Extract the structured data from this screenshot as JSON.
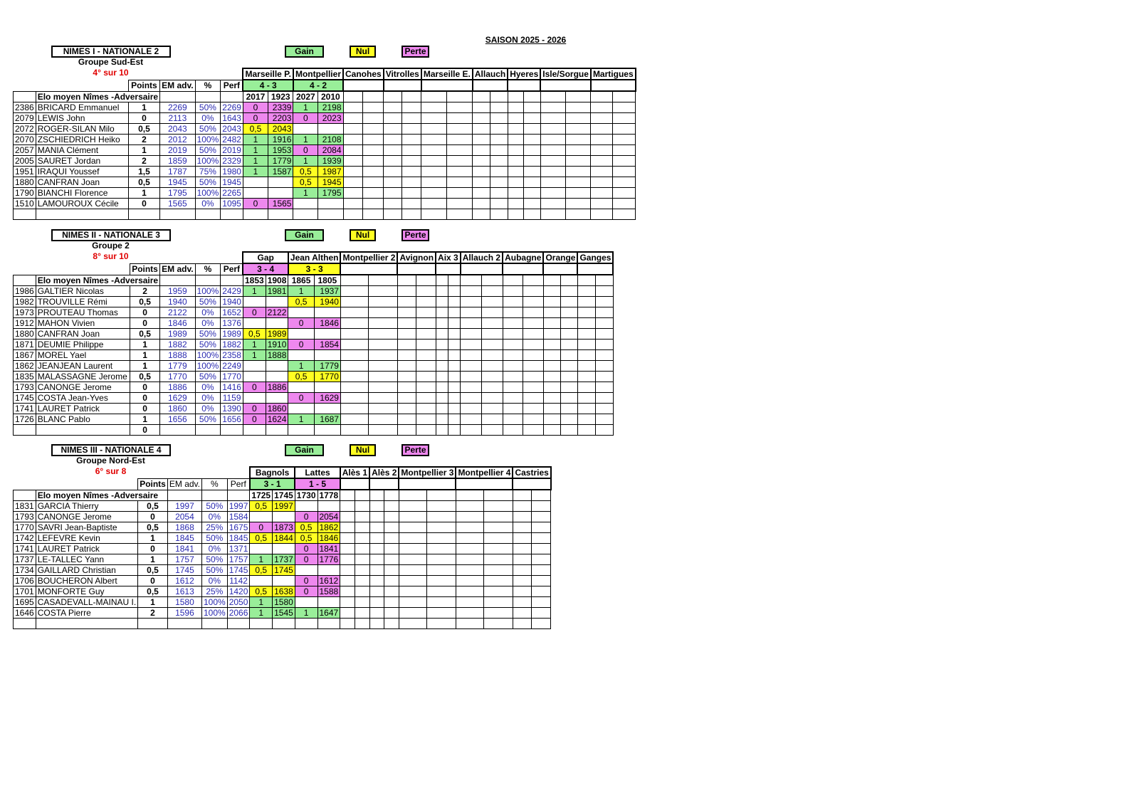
{
  "season": "SAISON 2025 - 2026",
  "legend": {
    "gain": "Gain",
    "nul": "Nul",
    "perte": "Perte"
  },
  "colors": {
    "gain": "#99ee99",
    "nul": "#ffff22",
    "perte": "#ee88ee",
    "rank": "#e00000",
    "values": "#2a2ab0"
  },
  "teams": [
    {
      "title": "NIMES I  -  NATIONALE  2",
      "group": "Groupe Sud-Est",
      "rank": "4° sur 10",
      "headers": {
        "points": "Points",
        "em": "EM adv.",
        "pct": "%",
        "perf": "Perf",
        "elo_label": "Elo moyen Nîmes -Adversaire"
      },
      "matches": [
        {
          "name": "Marseille P.",
          "score": "4 - 3",
          "result": "gain",
          "elos": [
            "2017",
            "1923"
          ]
        },
        {
          "name": "Montpellier",
          "score": "4 - 2",
          "result": "gain",
          "elos": [
            "2027",
            "2010"
          ]
        },
        {
          "name": "Canohes"
        },
        {
          "name": "Vitrolles"
        },
        {
          "name": "Marseille E."
        },
        {
          "name": "Allauch"
        },
        {
          "name": "Hyeres"
        },
        {
          "name": "Isle/Sorgue"
        },
        {
          "name": "Martigues"
        }
      ],
      "players": [
        {
          "elo": "2386",
          "name": "BRICARD Emmanuel",
          "points": "1",
          "em": "2269",
          "pct": "50%",
          "perf": "2269",
          "games": [
            [
              "0",
              "2339"
            ],
            [
              "1",
              "2198"
            ]
          ]
        },
        {
          "elo": "2079",
          "name": "LEWIS John",
          "points": "0",
          "em": "2113",
          "pct": "0%",
          "perf": "1643",
          "games": [
            [
              "0",
              "2203"
            ],
            [
              "0",
              "2023"
            ]
          ]
        },
        {
          "elo": "2072",
          "name": "ROGER-SILAN Milo",
          "points": "0,5",
          "em": "2043",
          "pct": "50%",
          "perf": "2043",
          "games": [
            [
              "0,5",
              "2043"
            ],
            null
          ]
        },
        {
          "elo": "2070",
          "name": "ZSCHIEDRICH Heiko",
          "points": "2",
          "em": "2012",
          "pct": "100%",
          "perf": "2482",
          "games": [
            [
              "1",
              "1916"
            ],
            [
              "1",
              "2108"
            ]
          ]
        },
        {
          "elo": "2057",
          "name": "MANIA Clément",
          "points": "1",
          "em": "2019",
          "pct": "50%",
          "perf": "2019",
          "games": [
            [
              "1",
              "1953"
            ],
            [
              "0",
              "2084"
            ]
          ]
        },
        {
          "elo": "2005",
          "name": "SAURET Jordan",
          "points": "2",
          "em": "1859",
          "pct": "100%",
          "perf": "2329",
          "games": [
            [
              "1",
              "1779"
            ],
            [
              "1",
              "1939"
            ]
          ]
        },
        {
          "elo": "1951",
          "name": "IRAQUI Youssef",
          "points": "1,5",
          "em": "1787",
          "pct": "75%",
          "perf": "1980",
          "games": [
            [
              "1",
              "1587"
            ],
            [
              "0,5",
              "1987"
            ]
          ]
        },
        {
          "elo": "1880",
          "name": "CANFRAN Joan",
          "points": "0,5",
          "em": "1945",
          "pct": "50%",
          "perf": "1945",
          "games": [
            null,
            [
              "0,5",
              "1945"
            ]
          ]
        },
        {
          "elo": "1790",
          "name": "BIANCHI Florence",
          "points": "1",
          "em": "1795",
          "pct": "100%",
          "perf": "2265",
          "games": [
            null,
            [
              "1",
              "1795"
            ]
          ]
        },
        {
          "elo": "1510",
          "name": "LAMOUROUX Cécile",
          "points": "0",
          "em": "1565",
          "pct": "0%",
          "perf": "1095",
          "games": [
            [
              "0",
              "1565"
            ],
            null
          ]
        },
        {
          "elo": "",
          "name": "",
          "points": "",
          "em": "",
          "pct": "",
          "perf": "",
          "games": []
        }
      ]
    },
    {
      "title": "NIMES II  -  NATIONALE  3",
      "group": "Groupe 2",
      "rank": "8°  sur 10",
      "headers": {
        "points": "Points",
        "em": "EM adv.",
        "pct": "%",
        "perf": "Perf",
        "elo_label": "Elo moyen Nîmes -Adversaire"
      },
      "matches": [
        {
          "name": "Gap",
          "score": "3 - 4",
          "result": "perte",
          "elos": [
            "1853",
            "1908"
          ]
        },
        {
          "name": "Jean Althen",
          "score": "3 - 3",
          "result": "nul",
          "elos": [
            "1865",
            "1805"
          ]
        },
        {
          "name": "Montpellier 2"
        },
        {
          "name": "Avignon"
        },
        {
          "name": "Aix 3"
        },
        {
          "name": "Allauch 2"
        },
        {
          "name": "Aubagne"
        },
        {
          "name": "Orange"
        },
        {
          "name": "Ganges"
        }
      ],
      "players": [
        {
          "elo": "1986",
          "name": "GALTIER Nicolas",
          "points": "2",
          "em": "1959",
          "pct": "100%",
          "perf": "2429",
          "games": [
            [
              "1",
              "1981"
            ],
            [
              "1",
              "1937"
            ]
          ]
        },
        {
          "elo": "1982",
          "name": "TROUVILLE Rémi",
          "points": "0,5",
          "em": "1940",
          "pct": "50%",
          "perf": "1940",
          "games": [
            null,
            [
              "0,5",
              "1940"
            ]
          ]
        },
        {
          "elo": "1973",
          "name": "PROUTEAU Thomas",
          "points": "0",
          "em": "2122",
          "pct": "0%",
          "perf": "1652",
          "games": [
            [
              "0",
              "2122"
            ],
            null
          ]
        },
        {
          "elo": "1912",
          "name": "MAHON Vivien",
          "points": "0",
          "em": "1846",
          "pct": "0%",
          "perf": "1376",
          "games": [
            null,
            [
              "0",
              "1846"
            ]
          ]
        },
        {
          "elo": "1880",
          "name": "CANFRAN Joan",
          "points": "0,5",
          "em": "1989",
          "pct": "50%",
          "perf": "1989",
          "games": [
            [
              "0,5",
              "1989"
            ],
            null
          ]
        },
        {
          "elo": "1871",
          "name": "DEUMIE Philippe",
          "points": "1",
          "em": "1882",
          "pct": "50%",
          "perf": "1882",
          "games": [
            [
              "1",
              "1910"
            ],
            [
              "0",
              "1854"
            ]
          ]
        },
        {
          "elo": "1867",
          "name": "MOREL Yael",
          "points": "1",
          "em": "1888",
          "pct": "100%",
          "perf": "2358",
          "games": [
            [
              "1",
              "1888"
            ],
            null
          ]
        },
        {
          "elo": "1862",
          "name": "JEANJEAN Laurent",
          "points": "1",
          "em": "1779",
          "pct": "100%",
          "perf": "2249",
          "games": [
            null,
            [
              "1",
              "1779"
            ]
          ]
        },
        {
          "elo": "1835",
          "name": "MALASSAGNE Jerome",
          "points": "0,5",
          "em": "1770",
          "pct": "50%",
          "perf": "1770",
          "games": [
            null,
            [
              "0,5",
              "1770"
            ]
          ]
        },
        {
          "elo": "1793",
          "name": "CANONGE Jerome",
          "points": "0",
          "em": "1886",
          "pct": "0%",
          "perf": "1416",
          "games": [
            [
              "0",
              "1886"
            ],
            null
          ]
        },
        {
          "elo": "1745",
          "name": "COSTA Jean-Yves",
          "points": "0",
          "em": "1629",
          "pct": "0%",
          "perf": "1159",
          "games": [
            null,
            [
              "0",
              "1629"
            ]
          ]
        },
        {
          "elo": "1741",
          "name": "LAURET Patrick",
          "points": "0",
          "em": "1860",
          "pct": "0%",
          "perf": "1390",
          "games": [
            [
              "0",
              "1860"
            ],
            null
          ]
        },
        {
          "elo": "1726",
          "name": "BLANC Pablo",
          "points": "1",
          "em": "1656",
          "pct": "50%",
          "perf": "1656",
          "games": [
            [
              "0",
              "1624"
            ],
            [
              "1",
              "1687"
            ]
          ]
        },
        {
          "elo": "",
          "name": "",
          "points": "0",
          "em": "",
          "pct": "",
          "perf": "",
          "games": []
        }
      ]
    },
    {
      "title": "NIMES III  -  NATIONALE  4",
      "group": "Groupe Nord-Est",
      "rank": "6°  sur 8",
      "headers": {
        "points": "Points",
        "em": "EM adv.",
        "pct": "%",
        "perf": "Perf",
        "elo_label": "Elo moyen Nîmes -Adversaire"
      },
      "matches": [
        {
          "name": "Bagnols",
          "score": "3 - 1",
          "result": "gain",
          "elos": [
            "1725",
            "1745"
          ]
        },
        {
          "name": "Lattes",
          "score": "1 - 5",
          "result": "perte",
          "elos": [
            "1730",
            "1778"
          ]
        },
        {
          "name": "Alès 1"
        },
        {
          "name": "Alès 2"
        },
        {
          "name": "Montpellier 3"
        },
        {
          "name": "Montpellier 4"
        },
        {
          "name": "Castries"
        }
      ],
      "players": [
        {
          "elo": "1831",
          "name": "GARCIA Thierry",
          "points": "0,5",
          "em": "1997",
          "pct": "50%",
          "perf": "1997",
          "games": [
            [
              "0,5",
              "1997"
            ],
            null
          ]
        },
        {
          "elo": "1793",
          "name": "CANONGE Jerome",
          "points": "0",
          "em": "2054",
          "pct": "0%",
          "perf": "1584",
          "games": [
            null,
            [
              "0",
              "2054"
            ]
          ]
        },
        {
          "elo": "1770",
          "name": "SAVRI Jean-Baptiste",
          "points": "0,5",
          "em": "1868",
          "pct": "25%",
          "perf": "1675",
          "games": [
            [
              "0",
              "1873"
            ],
            [
              "0,5",
              "1862"
            ]
          ]
        },
        {
          "elo": "1742",
          "name": "LEFEVRE Kevin",
          "points": "1",
          "em": "1845",
          "pct": "50%",
          "perf": "1845",
          "games": [
            [
              "0,5",
              "1844"
            ],
            [
              "0,5",
              "1846"
            ]
          ]
        },
        {
          "elo": "1741",
          "name": "LAURET Patrick",
          "points": "0",
          "em": "1841",
          "pct": "0%",
          "perf": "1371",
          "games": [
            null,
            [
              "0",
              "1841"
            ]
          ]
        },
        {
          "elo": "1737",
          "name": "LE-TALLEC Yann",
          "points": "1",
          "em": "1757",
          "pct": "50%",
          "perf": "1757",
          "games": [
            [
              "1",
              "1737"
            ],
            [
              "0",
              "1776"
            ]
          ]
        },
        {
          "elo": "1734",
          "name": "GAILLARD Christian",
          "points": "0,5",
          "em": "1745",
          "pct": "50%",
          "perf": "1745",
          "games": [
            [
              "0,5",
              "1745"
            ],
            null
          ]
        },
        {
          "elo": "1706",
          "name": "BOUCHERON Albert",
          "points": "0",
          "em": "1612",
          "pct": "0%",
          "perf": "1142",
          "games": [
            null,
            [
              "0",
              "1612"
            ]
          ]
        },
        {
          "elo": "1701",
          "name": "MONFORTE Guy",
          "points": "0,5",
          "em": "1613",
          "pct": "25%",
          "perf": "1420",
          "games": [
            [
              "0,5",
              "1638"
            ],
            [
              "0",
              "1588"
            ]
          ]
        },
        {
          "elo": "1695",
          "name": "CASADEVALL-MAINAU I.",
          "points": "1",
          "em": "1580",
          "pct": "100%",
          "perf": "2050",
          "games": [
            [
              "1",
              "1580"
            ],
            null
          ]
        },
        {
          "elo": "1646",
          "name": "COSTA Pierre",
          "points": "2",
          "em": "1596",
          "pct": "100%",
          "perf": "2066",
          "games": [
            [
              "1",
              "1545"
            ],
            [
              "1",
              "1647"
            ]
          ]
        },
        {
          "elo": "",
          "name": "",
          "points": "",
          "em": "",
          "pct": "",
          "perf": "",
          "games": []
        }
      ]
    }
  ]
}
